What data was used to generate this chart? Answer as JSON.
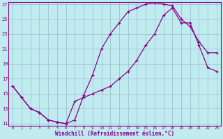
{
  "xlabel": "Windchill (Refroidissement éolien,°C)",
  "bg_color": "#c0ecf0",
  "line_color": "#880088",
  "grid_color": "#a0b8cc",
  "xlim": [
    0,
    23
  ],
  "ylim": [
    11,
    27
  ],
  "xticks": [
    0,
    1,
    2,
    3,
    4,
    5,
    6,
    7,
    8,
    9,
    10,
    11,
    12,
    13,
    14,
    15,
    16,
    17,
    18,
    19,
    20,
    21,
    22,
    23
  ],
  "yticks": [
    11,
    13,
    15,
    17,
    19,
    21,
    23,
    25,
    27
  ],
  "curve1_x": [
    0,
    1,
    2,
    3,
    4,
    5,
    6,
    7,
    8,
    9,
    10,
    11,
    12,
    13,
    14,
    15,
    16,
    17,
    18,
    19,
    20,
    21,
    22,
    23
  ],
  "curve1_y": [
    16.0,
    14.5,
    13.0,
    12.5,
    11.5,
    11.2,
    11.0,
    11.5,
    14.8,
    17.5,
    21.0,
    23.0,
    24.5,
    26.0,
    26.5,
    27.0,
    27.2,
    27.0,
    26.8,
    25.0,
    24.0,
    22.0,
    20.5,
    20.5
  ],
  "curve2_x": [
    0,
    1,
    2,
    3,
    4,
    5,
    6,
    7,
    8,
    9,
    10,
    11,
    12,
    13,
    14,
    15,
    16,
    17,
    18,
    19,
    20,
    21,
    22,
    23
  ],
  "curve2_y": [
    16.0,
    14.5,
    13.0,
    12.5,
    11.5,
    11.2,
    11.0,
    14.0,
    14.5,
    15.0,
    15.5,
    16.0,
    17.0,
    18.0,
    19.5,
    21.5,
    23.0,
    25.5,
    26.5,
    24.5,
    24.5,
    21.5,
    18.5,
    18.0
  ]
}
